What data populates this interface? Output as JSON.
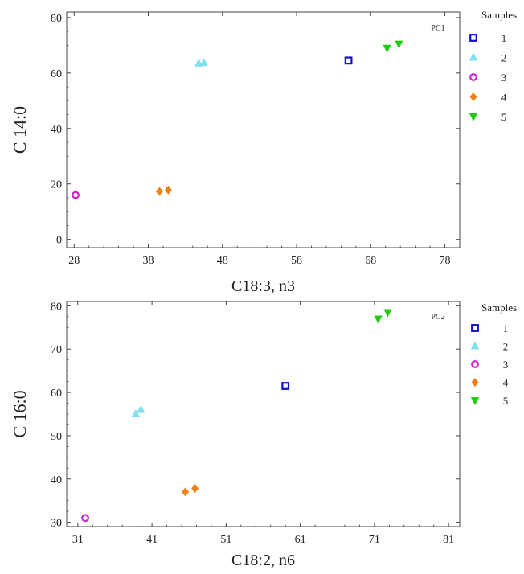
{
  "colors": {
    "sample_1": "#1010cc",
    "sample_2": "#7fe0ee",
    "sample_3": "#d020d0",
    "sample_4": "#f08010",
    "sample_5": "#22cc11",
    "axis": "#444444"
  },
  "chart_data": [
    {
      "type": "scatter",
      "panel_label": "PC1",
      "xlabel": "C18:3, n3",
      "ylabel": "C 14:0",
      "xlim": [
        27,
        80
      ],
      "ylim": [
        -3,
        82
      ],
      "x_ticks": [
        28,
        38,
        48,
        58,
        68,
        78
      ],
      "y_ticks": [
        0,
        20,
        40,
        60,
        80
      ],
      "legend_title": "Samples",
      "legend_position": "right",
      "series": [
        {
          "name": "1",
          "marker": "square",
          "points": [
            [
              65,
              64.5
            ]
          ]
        },
        {
          "name": "2",
          "marker": "triangle-up",
          "points": [
            [
              44.8,
              63.5
            ],
            [
              45.5,
              63.7
            ]
          ]
        },
        {
          "name": "3",
          "marker": "circle",
          "points": [
            [
              28.2,
              16
            ]
          ]
        },
        {
          "name": "4",
          "marker": "diamond",
          "points": [
            [
              39.5,
              17.3
            ],
            [
              40.7,
              17.8
            ]
          ]
        },
        {
          "name": "5",
          "marker": "triangle-down",
          "points": [
            [
              70.2,
              69
            ],
            [
              71.8,
              70.5
            ]
          ]
        }
      ]
    },
    {
      "type": "scatter",
      "panel_label": "PC2",
      "xlabel": "C18:2, n6",
      "ylabel": "C 16:0",
      "xlim": [
        29.5,
        82.5
      ],
      "ylim": [
        29,
        81
      ],
      "x_ticks": [
        31,
        41,
        51,
        61,
        71,
        81
      ],
      "y_ticks": [
        30,
        40,
        50,
        60,
        70,
        80
      ],
      "legend_title": "Samples",
      "legend_position": "right",
      "series": [
        {
          "name": "1",
          "marker": "square",
          "points": [
            [
              59,
              61.5
            ]
          ]
        },
        {
          "name": "2",
          "marker": "triangle-up",
          "points": [
            [
              38.8,
              55
            ],
            [
              39.5,
              56
            ]
          ]
        },
        {
          "name": "3",
          "marker": "circle",
          "points": [
            [
              32,
              31
            ]
          ]
        },
        {
          "name": "4",
          "marker": "diamond",
          "points": [
            [
              45.5,
              37
            ],
            [
              46.8,
              37.8
            ]
          ]
        },
        {
          "name": "5",
          "marker": "triangle-down",
          "points": [
            [
              71.5,
              77
            ],
            [
              72.8,
              78.5
            ]
          ]
        }
      ]
    }
  ]
}
